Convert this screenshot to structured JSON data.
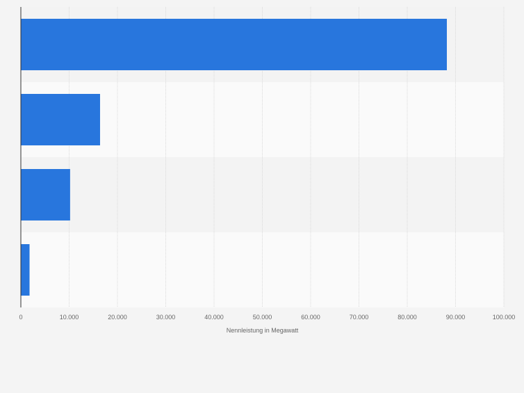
{
  "chart_data": {
    "type": "bar",
    "orientation": "horizontal",
    "categories": [
      "",
      "",
      "",
      ""
    ],
    "values": [
      88200,
      16400,
      10200,
      1800
    ],
    "xlabel": "Nennleistung in Megawatt",
    "xlim": [
      0,
      100000
    ],
    "ticks": [
      0,
      10000,
      20000,
      30000,
      40000,
      50000,
      60000,
      70000,
      80000,
      90000,
      100000
    ],
    "tick_labels": [
      "0",
      "10.000",
      "20.000",
      "30.000",
      "40.000",
      "50.000",
      "60.000",
      "70.000",
      "80.000",
      "90.000",
      "100.000"
    ],
    "grid": true,
    "bar_color": "#2876dd",
    "background": "#f4f4f4",
    "band_colors": [
      "#f3f3f3",
      "#fafafa"
    ],
    "gridline_color": "#d9d9d9",
    "axis_color": "#333333",
    "text_color": "#666666"
  }
}
